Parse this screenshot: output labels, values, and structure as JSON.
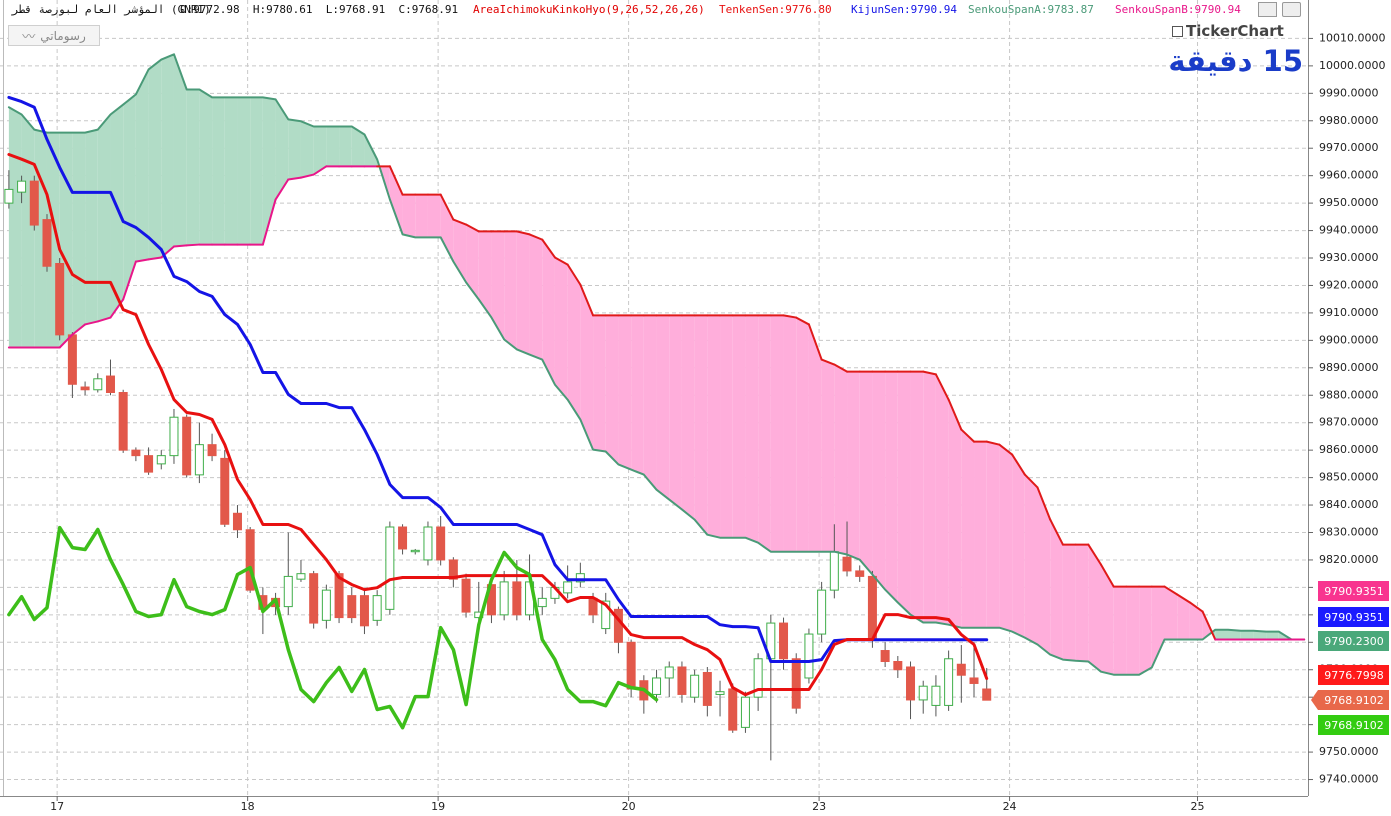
{
  "header": {
    "symbol": "المؤشر العام لبورصة قطر (GNRI)",
    "ohlc": "O:9772.98  H:9780.61  L:9768.91  C:9768.91",
    "indicator": "AreaIchimokuKinkoHyo(9,26,52,26,26)",
    "brand": "TickerChart",
    "interval": "15 دقيقة"
  },
  "toolbar": {
    "drawings_button": "رسوماتي"
  },
  "chart_data": {
    "type": "candlestick",
    "xlim": [
      -0.7,
      102.3
    ],
    "xticks": [
      {
        "value": 3.8,
        "label": "17"
      },
      {
        "value": 18.8,
        "label": "18"
      },
      {
        "value": 33.8,
        "label": "19"
      },
      {
        "value": 48.8,
        "label": "20"
      },
      {
        "value": 63.8,
        "label": "23"
      },
      {
        "value": 78.8,
        "label": "24"
      },
      {
        "value": 93.6,
        "label": "25"
      }
    ],
    "ylim": [
      9734,
      10024
    ],
    "yticks": [
      {
        "value": 9740,
        "label": "9740.0000"
      },
      {
        "value": 9750,
        "label": "9750.0000"
      },
      {
        "value": 9760,
        "label": "9760.0000"
      },
      {
        "value": 9770,
        "label": "9770.0000"
      },
      {
        "value": 9780,
        "label": "9780.0000"
      },
      {
        "value": 9790,
        "label": "9790.0000"
      },
      {
        "value": 9800,
        "label": "9800.0000"
      },
      {
        "value": 9810,
        "label": "9810.0000"
      },
      {
        "value": 9820,
        "label": "9820.0000"
      },
      {
        "value": 9830,
        "label": "9830.0000"
      },
      {
        "value": 9840,
        "label": "9840.0000"
      },
      {
        "value": 9850,
        "label": "9850.0000"
      },
      {
        "value": 9860,
        "label": "9860.0000"
      },
      {
        "value": 9870,
        "label": "9870.0000"
      },
      {
        "value": 9880,
        "label": "9880.0000"
      },
      {
        "value": 9890,
        "label": "9890.0000"
      },
      {
        "value": 9900,
        "label": "9900.0000"
      },
      {
        "value": 9910,
        "label": "9910.0000"
      },
      {
        "value": 9920,
        "label": "9920.0000"
      },
      {
        "value": 9930,
        "label": "9930.0000"
      },
      {
        "value": 9940,
        "label": "9940.0000"
      },
      {
        "value": 9950,
        "label": "9950.0000"
      },
      {
        "value": 9960,
        "label": "9960.0000"
      },
      {
        "value": 9970,
        "label": "9970.0000"
      },
      {
        "value": 9980,
        "label": "9980.0000"
      },
      {
        "value": 9990,
        "label": "9990.0000"
      },
      {
        "value": 10000,
        "label": "10000.0000"
      },
      {
        "value": 10010,
        "label": "10010.0000"
      }
    ],
    "grid": true,
    "up_color": "#3fae49",
    "down_color": "#e2584a",
    "wick_color": "#555555",
    "open": [
      9950,
      9954,
      9958,
      9944,
      9928,
      9902,
      9883,
      9882,
      9887,
      9881,
      9860,
      9858,
      9855,
      9858,
      9872,
      9851,
      9862,
      9857,
      9837,
      9831,
      9807,
      9806,
      9803,
      9813,
      9815,
      9798,
      9815,
      9807,
      9807,
      9798,
      9802,
      9832,
      9823,
      9820,
      9832,
      9820,
      9813,
      9799,
      9811,
      9800,
      9812,
      9800,
      9803,
      9806,
      9808,
      9812,
      9806,
      9795,
      9802,
      9790,
      9776,
      9771,
      9777,
      9781,
      9770,
      9779,
      9771,
      9773,
      9759,
      9770,
      9784,
      9797,
      9784,
      9777,
      9793,
      9809,
      9821,
      9816,
      9814,
      9787,
      9783,
      9781,
      9769,
      9767,
      9767,
      9782,
      9777,
      9772.98
    ],
    "high": [
      9962,
      9960,
      9960,
      9946,
      9930,
      9903,
      9885,
      9888,
      9893,
      9882,
      9861,
      9861,
      9860,
      9875,
      9873,
      9870,
      9866,
      9860,
      9840,
      9832,
      9810,
      9808,
      9830,
      9820,
      9816,
      9811,
      9816,
      9810,
      9809,
      9809,
      9834,
      9833,
      9824,
      9834,
      9836,
      9821,
      9815,
      9812,
      9814,
      9816,
      9820,
      9822,
      9810,
      9812,
      9818,
      9819,
      9808,
      9808,
      9803,
      9791,
      9778,
      9780,
      9783,
      9783,
      9780,
      9781,
      9776,
      9775,
      9772,
      9786,
      9800,
      9799,
      9786,
      9795,
      9812,
      9833,
      9834,
      9818,
      9816,
      9790,
      9785,
      9783,
      9776,
      9778,
      9787,
      9789,
      9790,
      9780.61
    ],
    "low": [
      9948,
      9950,
      9940,
      9925,
      9900,
      9879,
      9880,
      9881,
      9880,
      9859,
      9856,
      9851,
      9853,
      9855,
      9850,
      9848,
      9856,
      9832,
      9828,
      9808,
      9793,
      9800,
      9800,
      9812,
      9795,
      9795,
      9797,
      9797,
      9793,
      9796,
      9800,
      9822,
      9822,
      9818,
      9818,
      9810,
      9799,
      9797,
      9797,
      9798,
      9798,
      9798,
      9800,
      9804,
      9806,
      9810,
      9797,
      9793,
      9786,
      9770,
      9764,
      9768,
      9770,
      9768,
      9768,
      9763,
      9763,
      9757,
      9757,
      9765,
      9747,
      9780,
      9764,
      9775,
      9790,
      9806,
      9814,
      9812,
      9788,
      9781,
      9777,
      9762,
      9764,
      9763,
      9765,
      9768,
      9770,
      9768.91
    ],
    "close": [
      9955,
      9958,
      9942,
      9927,
      9902,
      9884,
      9882,
      9886,
      9881,
      9860,
      9858,
      9852,
      9858,
      9872,
      9851,
      9862,
      9858,
      9833,
      9831,
      9809,
      9802,
      9803,
      9814,
      9815,
      9797,
      9809,
      9799,
      9799,
      9796,
      9807,
      9832,
      9824,
      9823.5,
      9832,
      9820,
      9813,
      9801,
      9801,
      9800,
      9812,
      9800,
      9812,
      9806,
      9810,
      9812,
      9815,
      9800,
      9805,
      9790,
      9773,
      9769,
      9777,
      9781,
      9771,
      9778,
      9767,
      9772,
      9758,
      9770,
      9784,
      9797,
      9784,
      9766,
      9793,
      9809,
      9823,
      9816,
      9814,
      9791,
      9783,
      9780,
      9769,
      9774,
      9774,
      9784,
      9778,
      9775,
      9768.91
    ],
    "cloud_up_color": "#b1dcc6",
    "cloud_down_color": "#ffaedb",
    "tenkan_sen": {
      "name": "TenkenSen:9776.80",
      "color": "#e81010",
      "values": [
        9967.7,
        9966,
        9964.1,
        9953.1,
        9933.1,
        9924.0,
        9921.1,
        9921.1,
        9921.1,
        9911.2,
        9909.4,
        9898.5,
        9889.4,
        9878.4,
        9873.7,
        9873.0,
        9871.2,
        9862.0,
        9849.3,
        9842.0,
        9832.9,
        9832.9,
        9832.9,
        9831.1,
        9825.6,
        9820.1,
        9813.6,
        9811.0,
        9809.2,
        9809.9,
        9812.8,
        9813.6,
        9813.6,
        9813.6,
        9813.6,
        9813.6,
        9814.3,
        9814.3,
        9814.3,
        9814.3,
        9814.3,
        9814.3,
        9814.3,
        9809.9,
        9804.8,
        9806.3,
        9806.3,
        9803.7,
        9798.3,
        9792.8,
        9791.7,
        9791.7,
        9791.7,
        9791.7,
        9789.2,
        9787.3,
        9783.7,
        9773.5,
        9770.9,
        9772.8,
        9772.8,
        9772.8,
        9772.8,
        9772.8,
        9780.1,
        9789.2,
        9791.0,
        9791.0,
        9791.0,
        9800.1,
        9800.1,
        9799.0,
        9799.0,
        9799.0,
        9798.3,
        9792.8,
        9789.2,
        9776.8
      ]
    },
    "kijun_sen": {
      "name": "KijunSen:9790.94",
      "color": "#1414e6",
      "values": [
        9988.5,
        9987,
        9984.9,
        9973.2,
        9963,
        9953.9,
        9953.9,
        9953.9,
        9953.9,
        9943.3,
        9941.1,
        9937.5,
        9933.1,
        9923.3,
        9921.4,
        9917.8,
        9916.0,
        9909.4,
        9905.8,
        9898.5,
        9888.3,
        9888.3,
        9880.3,
        9877.0,
        9877.0,
        9877.0,
        9875.5,
        9875.5,
        9867.5,
        9858.4,
        9847.5,
        9842.7,
        9842.7,
        9842.7,
        9839.1,
        9832.9,
        9832.9,
        9832.9,
        9832.9,
        9832.9,
        9832.9,
        9831.1,
        9829.2,
        9818.3,
        9812.8,
        9812.8,
        9812.8,
        9812.8,
        9805.6,
        9799.4,
        9799.4,
        9799.4,
        9799.4,
        9799.4,
        9799.4,
        9799.4,
        9796.4,
        9795.7,
        9795.7,
        9795.3,
        9783.0,
        9783.0,
        9783.0,
        9783.0,
        9783.7,
        9790.6,
        9790.94,
        9790.94,
        9790.94,
        9790.94,
        9790.94,
        9790.94,
        9790.94,
        9790.94,
        9790.94,
        9790.94,
        9790.94,
        9790.94
      ]
    },
    "senkou_span_a": {
      "name": "SenkouSpanA:9783.87",
      "color": "#4a9a78",
      "values": [
        9984.9,
        9982.3,
        9976.8,
        9975.7,
        9975.7,
        9975.7,
        9975.7,
        9976.8,
        9982.3,
        9985.9,
        9989.6,
        9998.7,
        10002.3,
        10004.2,
        9991.4,
        9991.4,
        9988.5,
        9988.5,
        9988.5,
        9988.5,
        9988.5,
        9987.8,
        9980.5,
        9979.8,
        9977.9,
        9977.9,
        9977.9,
        9977.9,
        9975.0,
        9965.9,
        9951.3,
        9938.6,
        9937.5,
        9937.5,
        9937.5,
        9928.7,
        9921.1,
        9914.9,
        9908.3,
        9900.3,
        9896.7,
        9894.8,
        9893.0,
        9883.9,
        9878.4,
        9871.2,
        9860.2,
        9859.5,
        9854.8,
        9852.9,
        9851.1,
        9845.6,
        9842.0,
        9838.4,
        9834.7,
        9829.2,
        9828.1,
        9828.1,
        9828.1,
        9826.3,
        9823.0,
        9823.0,
        9823.0,
        9823.0,
        9823.0,
        9823.0,
        9822.0,
        9820.1,
        9814.7,
        9809.2,
        9804.5,
        9800.1,
        9797.2,
        9797.2,
        9796.4,
        9795.3,
        9795.3,
        9795.3,
        9795.3,
        9793.9,
        9791.7,
        9789.2,
        9785.5,
        9783.7,
        9783.3,
        9783.0,
        9779.3,
        9778.2,
        9778.2,
        9778.2,
        9780.8,
        9791.0,
        9791.0,
        9791.0,
        9791.0,
        9794.6,
        9794.6,
        9794.2,
        9794.2,
        9793.9,
        9793.9,
        9791.0,
        9791.0
      ]
    },
    "senkou_span_b": {
      "name": "SenkouSpanB:9790.94",
      "color": "#e01a1a",
      "alt_color": "#e8178a",
      "values": [
        9897.4,
        9897.4,
        9897.4,
        9897.4,
        9897.4,
        9902.1,
        9905.8,
        9906.9,
        9908.3,
        9914.9,
        9928.7,
        9929.5,
        9930.2,
        9934.2,
        9934.6,
        9934.9,
        9934.9,
        9934.9,
        9934.9,
        9934.9,
        9934.9,
        9951.3,
        9958.6,
        9959.3,
        9960.4,
        9963.4,
        9963.4,
        9963.4,
        9963.4,
        9963.4,
        9963.4,
        9953.1,
        9953.1,
        9953.1,
        9953.1,
        9944.0,
        9942.2,
        9939.7,
        9939.7,
        9939.7,
        9939.7,
        9938.6,
        9936.7,
        9930.2,
        9927.6,
        9920.3,
        9909.1,
        9909.1,
        9909.1,
        9909.1,
        9909.1,
        9909.1,
        9909.1,
        9909.1,
        9909.1,
        9909.1,
        9909.1,
        9909.1,
        9909.1,
        9909.1,
        9909.1,
        9909.1,
        9908.3,
        9905.8,
        9893.0,
        9891.2,
        9888.6,
        9888.6,
        9888.6,
        9888.6,
        9888.6,
        9888.6,
        9888.6,
        9887.6,
        9878.4,
        9867.5,
        9863.1,
        9863.1,
        9862.0,
        9858.4,
        9851.1,
        9846.4,
        9834.7,
        9825.6,
        9825.6,
        9825.6,
        9818.3,
        9810.3,
        9810.3,
        9810.3,
        9810.3,
        9810.3,
        9807.4,
        9804.5,
        9801.2,
        9791.0,
        9791.0,
        9791.0,
        9791.0,
        9791.0,
        9791.0,
        9791.0,
        9791.0
      ]
    },
    "chikou_span": {
      "color": "#3dbe1a",
      "values": [
        9800.1,
        9806.6,
        9798.3,
        9802.6,
        9831.8,
        9824.5,
        9823.8,
        9831.1,
        9820.1,
        9811.0,
        9801.2,
        9799.4,
        9800.1,
        9812.8,
        9803.0,
        9801.2,
        9800.1,
        9801.9,
        9814.7,
        9817.2,
        9801.2,
        9805.6,
        9787.3,
        9772.8,
        9768.4,
        9775.3,
        9780.8,
        9772.1,
        9780.1,
        9765.5,
        9766.6,
        9758.9,
        9770.2,
        9770.2,
        9795.3,
        9787.3,
        9767.3,
        9796.4,
        9812.8,
        9822.7,
        9817.2,
        9814.7,
        9791.0,
        9783.7,
        9772.8,
        9768.4,
        9768.4,
        9766.9,
        9775.3,
        9773.5,
        9772.8,
        9769.1
      ]
    },
    "price_tags": [
      {
        "text": "9790.9351",
        "color": "#f8348f"
      },
      {
        "text": "9790.9351",
        "color": "#1a1aff"
      },
      {
        "text": "9790.2300",
        "color": "#4aa87a"
      },
      {
        "text": "9776.7998",
        "color": "#ff1a1a"
      },
      {
        "text": "9768.9102",
        "color": "#e8684a"
      },
      {
        "text": "9768.9102",
        "color": "#33cc11"
      }
    ]
  }
}
